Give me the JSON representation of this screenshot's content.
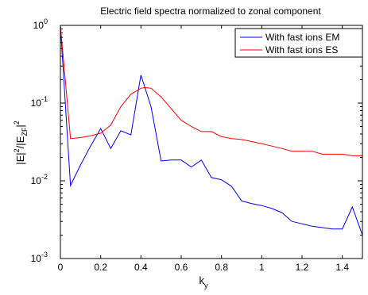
{
  "chart_data": {
    "type": "line",
    "title": "Electric field spectra normalized to zonal component",
    "xlabel_main": "k",
    "xlabel_sub": "y",
    "ylabel": {
      "base1": "|E|",
      "sup1": "2",
      "mid": "/|E",
      "sub": "ZF",
      "base2": "|",
      "sup2": "2"
    },
    "xlim": [
      0,
      1.5
    ],
    "ylim": [
      0.001,
      1
    ],
    "yscale": "log",
    "x_ticks": [
      "0",
      "0.2",
      "0.4",
      "0.6",
      "0.8",
      "1",
      "1.2",
      "1.4"
    ],
    "x_tick_values": [
      0,
      0.2,
      0.4,
      0.6,
      0.8,
      1.0,
      1.2,
      1.4
    ],
    "y_ticks": [
      {
        "base": "10",
        "exp": "0",
        "value": 1
      },
      {
        "base": "10",
        "exp": "-1",
        "value": 0.1
      },
      {
        "base": "10",
        "exp": "-2",
        "value": 0.01
      },
      {
        "base": "10",
        "exp": "-3",
        "value": 0.001
      }
    ],
    "legend_position": "top-right",
    "series": [
      {
        "name": "With fast ions EM",
        "color": "#0000ff",
        "x": [
          0,
          0.05,
          0.1,
          0.15,
          0.2,
          0.25,
          0.3,
          0.35,
          0.4,
          0.45,
          0.5,
          0.55,
          0.6,
          0.65,
          0.7,
          0.75,
          0.8,
          0.85,
          0.9,
          0.95,
          1.0,
          1.05,
          1.1,
          1.15,
          1.2,
          1.25,
          1.3,
          1.35,
          1.4,
          1.45,
          1.5
        ],
        "y": [
          1.0,
          0.0087,
          0.016,
          0.028,
          0.047,
          0.026,
          0.044,
          0.039,
          0.23,
          0.09,
          0.018,
          0.0185,
          0.0185,
          0.015,
          0.0185,
          0.011,
          0.0103,
          0.0085,
          0.0055,
          0.0051,
          0.0048,
          0.0044,
          0.0039,
          0.003,
          0.0028,
          0.0026,
          0.0025,
          0.0024,
          0.0024,
          0.0046,
          0.002
        ]
      },
      {
        "name": "With fast ions ES",
        "color": "#ff0000",
        "x": [
          0,
          0.05,
          0.1,
          0.15,
          0.2,
          0.25,
          0.3,
          0.35,
          0.4,
          0.42,
          0.45,
          0.5,
          0.55,
          0.6,
          0.65,
          0.7,
          0.75,
          0.8,
          0.85,
          0.9,
          0.95,
          1.0,
          1.05,
          1.1,
          1.15,
          1.2,
          1.25,
          1.3,
          1.35,
          1.4,
          1.45,
          1.5
        ],
        "y": [
          1.0,
          0.035,
          0.036,
          0.038,
          0.041,
          0.052,
          0.09,
          0.13,
          0.155,
          0.158,
          0.155,
          0.12,
          0.085,
          0.06,
          0.05,
          0.043,
          0.043,
          0.037,
          0.035,
          0.034,
          0.032,
          0.03,
          0.028,
          0.026,
          0.024,
          0.024,
          0.024,
          0.022,
          0.022,
          0.022,
          0.021,
          0.021
        ]
      }
    ]
  }
}
